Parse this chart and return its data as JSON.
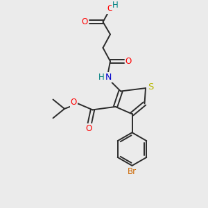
{
  "bg_color": "#ebebeb",
  "bond_color": "#2b2b2b",
  "atom_colors": {
    "O": "#ff0000",
    "N": "#0000cc",
    "S": "#b8b800",
    "Br": "#cc6600",
    "H_teal": "#008080",
    "C": "#2b2b2b"
  },
  "lw": 1.4,
  "fs": 8.5
}
